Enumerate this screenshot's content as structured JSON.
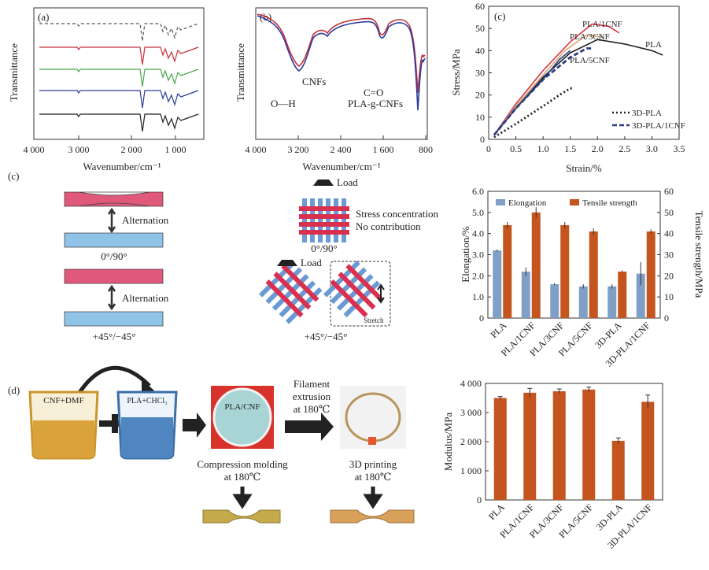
{
  "panels": {
    "a": {
      "tag": "(a)",
      "xlabel": "Wavenumber/cm⁻¹",
      "ylabel": "Transmittance",
      "xticks": [
        "4 000",
        "3 000",
        "2 000",
        "1 000"
      ],
      "series_colors": [
        "#555555",
        "#c8303c",
        "#4aa84a",
        "#2b3c9c",
        "#222222"
      ]
    },
    "b": {
      "tag": "(b)",
      "xlabel": "Wavenumber/cm⁻¹",
      "ylabel": "Transmittance",
      "xticks": [
        "4 000",
        "3 200",
        "2 400",
        "1 600",
        "800"
      ],
      "annotations": [
        "CNFs",
        "O—H",
        "C=O",
        "PLA-g-CNFs"
      ]
    },
    "c_stress": {
      "tag": "(c)",
      "xlabel": "Strain/%",
      "ylabel": "Stress/MPa",
      "xticks": [
        "0",
        "0.5",
        "1.0",
        "1.5",
        "2.0",
        "2.5",
        "3.0",
        "3.5"
      ],
      "yticks": [
        "0",
        "10",
        "20",
        "30",
        "40",
        "50",
        "60"
      ],
      "curve_labels": [
        "PLA/1CNF",
        "PLA/3CNF",
        "PLA",
        "PLA/5CNF"
      ],
      "legend": [
        "3D-PLA",
        "3D-PLA/1CNF"
      ]
    },
    "c_schematic": {
      "tag": "(c)",
      "alternation": "Alternation",
      "orient1": "0°/90°",
      "orient2": "+45°/−45°",
      "load": "Load",
      "stress_conc": "Stress concentration",
      "no_contrib": "No contribution",
      "stretch": "Stretch"
    },
    "d": {
      "tag": "(d)",
      "beaker1": "CNF+DMF",
      "beaker2": "PLA+CHCl₃",
      "plate": "PLA/CNF",
      "compression": "Compression molding",
      "compression_t": "at 180℃",
      "filament1": "Filament",
      "filament2": "extrusion",
      "filament3": "at 180℃",
      "printing": "3D printing",
      "printing_t": "at 180℃"
    },
    "legend_bar": [
      "Elongation",
      "Tensile strength"
    ],
    "bar1_ylabel_left": "Elongation/%",
    "bar1_ylabel_right": "Tensile strength/MPa",
    "bar1_yticks_left": [
      "0",
      "1.0",
      "2.0",
      "3.0",
      "4.0",
      "5.0",
      "6.0"
    ],
    "bar1_yticks_right": [
      "0",
      "10",
      "20",
      "30",
      "40",
      "50",
      "60"
    ],
    "bar2_ylabel": "Modulus/MPa",
    "bar2_yticks": [
      "0",
      "1 000",
      "2 000",
      "3 000",
      "4 000"
    ]
  },
  "colors": {
    "elongation": "#7f9fc6",
    "tensile": "#c4551f",
    "modulus": "#c4551f",
    "pla1cnf": "#d23a48",
    "pla3cnf": "#d8a87a",
    "pla": "#222222",
    "pla5cnf": "#2b3c80"
  },
  "chart_data": [
    {
      "type": "line",
      "title": "",
      "xlabel": "Strain/%",
      "ylabel": "Stress/MPa",
      "xlim": [
        0,
        3.5
      ],
      "ylim": [
        0,
        60
      ],
      "series": [
        {
          "name": "PLA/1CNF",
          "x": [
            0.1,
            0.5,
            1.0,
            1.5,
            1.9,
            2.2,
            2.4
          ],
          "y": [
            2,
            16,
            31,
            44,
            52,
            51,
            48
          ]
        },
        {
          "name": "PLA/3CNF",
          "x": [
            0.1,
            0.5,
            1.0,
            1.4,
            1.8,
            2.1
          ],
          "y": [
            2,
            15,
            29,
            40,
            47,
            46
          ]
        },
        {
          "name": "PLA",
          "x": [
            0.1,
            0.5,
            1.0,
            1.5,
            2.0,
            2.5,
            3.0,
            3.2
          ],
          "y": [
            2,
            14,
            28,
            39,
            45,
            43,
            40,
            38
          ]
        },
        {
          "name": "PLA/5CNF",
          "x": [
            0.1,
            0.5,
            1.0,
            1.3,
            1.5
          ],
          "y": [
            2,
            14,
            27,
            36,
            40
          ]
        },
        {
          "name": "3D-PLA",
          "x": [
            0.1,
            0.5,
            1.0,
            1.3,
            1.5,
            1.55
          ],
          "y": [
            1,
            7,
            15,
            20,
            23,
            23
          ]
        },
        {
          "name": "3D-PLA/1CNF",
          "x": [
            0.1,
            0.5,
            1.0,
            1.5,
            1.8,
            1.9
          ],
          "y": [
            2,
            14,
            27,
            37,
            41,
            41
          ]
        }
      ]
    },
    {
      "type": "bar",
      "categories": [
        "PLA",
        "PLA/1CNF",
        "PLA/3CNF",
        "PLA/5CNF",
        "3D-PLA",
        "3D-PLA/1CNF"
      ],
      "series": [
        {
          "name": "Elongation",
          "axis": "left",
          "values": [
            3.2,
            2.2,
            1.6,
            1.5,
            1.5,
            2.1
          ],
          "errors": [
            0.05,
            0.2,
            0.05,
            0.1,
            0.1,
            0.55
          ]
        },
        {
          "name": "Tensile strength",
          "axis": "right",
          "values": [
            44,
            50,
            44,
            41,
            22,
            41
          ],
          "errors": [
            1.5,
            2.5,
            1.5,
            1.5,
            0.5,
            1.0
          ]
        }
      ],
      "ylabel": "Elongation/%",
      "y2label": "Tensile strength/MPa",
      "ylim": [
        0,
        6
      ],
      "y2lim": [
        0,
        60
      ]
    },
    {
      "type": "bar",
      "categories": [
        "PLA",
        "PLA/1CNF",
        "PLA/3CNF",
        "PLA/5CNF",
        "3D-PLA",
        "3D-PLA/1CNF"
      ],
      "series": [
        {
          "name": "Modulus",
          "values": [
            3500,
            3680,
            3730,
            3790,
            2030,
            3370
          ],
          "errors": [
            50,
            150,
            80,
            80,
            100,
            230
          ]
        }
      ],
      "ylabel": "Modulus/MPa",
      "ylim": [
        0,
        4000
      ]
    }
  ]
}
